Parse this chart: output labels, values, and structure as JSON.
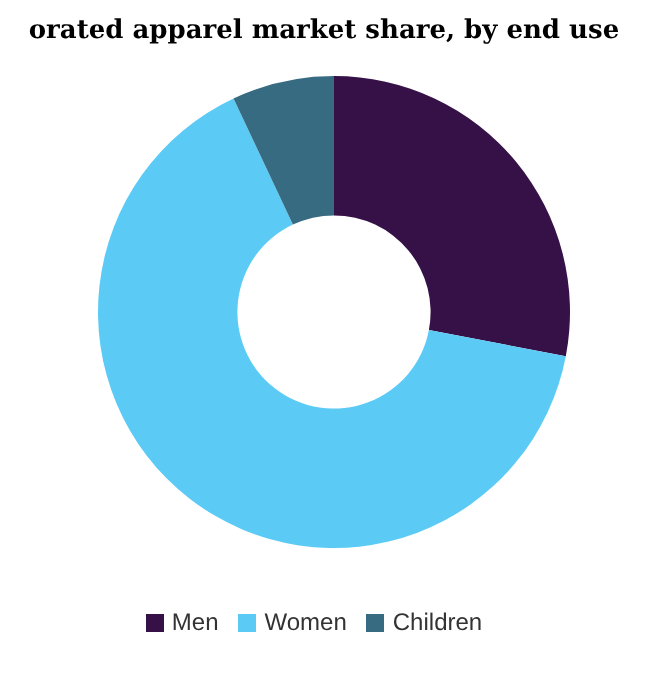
{
  "chart_data": {
    "type": "donut",
    "title": "orated apparel market share, by end use",
    "categories": [
      "Men",
      "Women",
      "Children"
    ],
    "values": [
      28,
      65,
      7
    ],
    "colors": [
      "#361148",
      "#5bcbf5",
      "#376b82"
    ],
    "legend": "bottom"
  }
}
